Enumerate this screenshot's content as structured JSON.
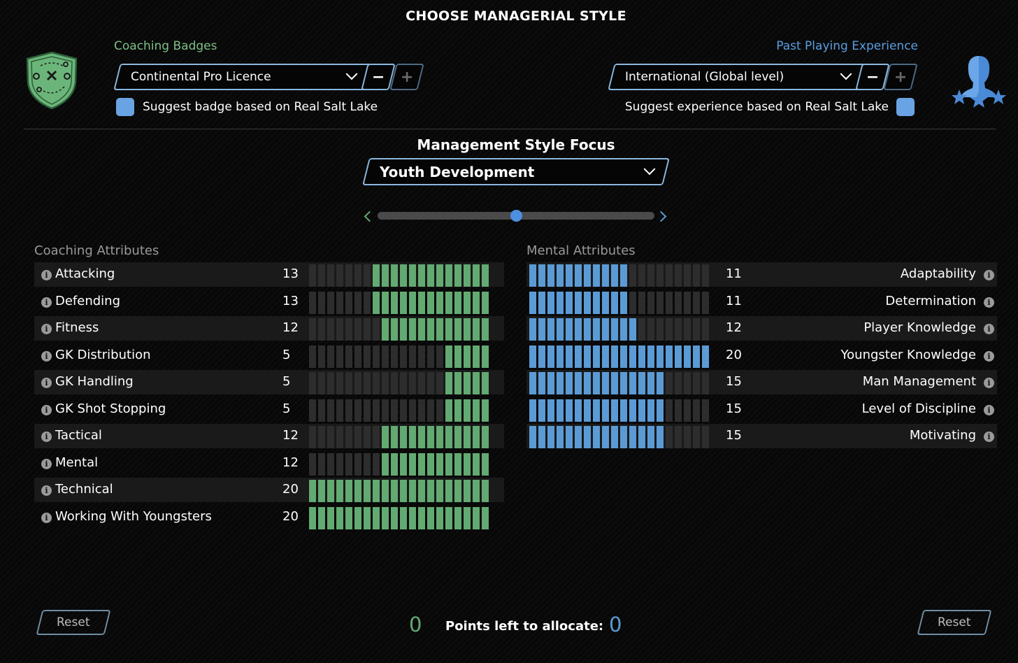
{
  "title": "CHOOSE MANAGERIAL STYLE",
  "coaching_badges": {
    "label": "Coaching Badges",
    "selected": "Continental Pro Licence",
    "minus": "−",
    "plus": "+",
    "suggest_checked": true,
    "suggest_label": "Suggest badge based on Real Salt Lake"
  },
  "past_experience": {
    "label": "Past Playing Experience",
    "selected": "International (Global level)",
    "minus": "−",
    "plus": "+",
    "suggest_checked": true,
    "suggest_label": "Suggest experience based on Real Salt Lake"
  },
  "focus": {
    "title": "Management Style Focus",
    "selected": "Youth Development",
    "slider_position": 0.5
  },
  "coaching_attributes": {
    "heading": "Coaching Attributes",
    "color": "#62aa72",
    "max": 20,
    "items": [
      {
        "label": "Attacking",
        "value": 13
      },
      {
        "label": "Defending",
        "value": 13
      },
      {
        "label": "Fitness",
        "value": 12
      },
      {
        "label": "GK Distribution",
        "value": 5
      },
      {
        "label": "GK Handling",
        "value": 5
      },
      {
        "label": "GK Shot Stopping",
        "value": 5
      },
      {
        "label": "Tactical",
        "value": 12
      },
      {
        "label": "Mental",
        "value": 12
      },
      {
        "label": "Technical",
        "value": 20
      },
      {
        "label": "Working With Youngsters",
        "value": 20
      }
    ]
  },
  "mental_attributes": {
    "heading": "Mental Attributes",
    "color": "#5b9bd5",
    "max": 20,
    "items": [
      {
        "label": "Adaptability",
        "value": 11
      },
      {
        "label": "Determination",
        "value": 11
      },
      {
        "label": "Player Knowledge",
        "value": 12
      },
      {
        "label": "Youngster Knowledge",
        "value": 20
      },
      {
        "label": "Man Management",
        "value": 15
      },
      {
        "label": "Level of Discipline",
        "value": 15
      },
      {
        "label": "Motivating",
        "value": 15
      }
    ]
  },
  "footer": {
    "reset_left": "Reset",
    "reset_right": "Reset",
    "points_left_coaching": "0",
    "points_label": "Points left to allocate:",
    "points_left_mental": "0",
    "coaching_color": "#62aa72",
    "mental_color": "#5b9bd5"
  },
  "icons": {
    "badge": "tactics-shield-icon",
    "experience": "player-silhouette-stars-icon",
    "info": "info-icon",
    "dropdown": "chevron-down-icon"
  }
}
